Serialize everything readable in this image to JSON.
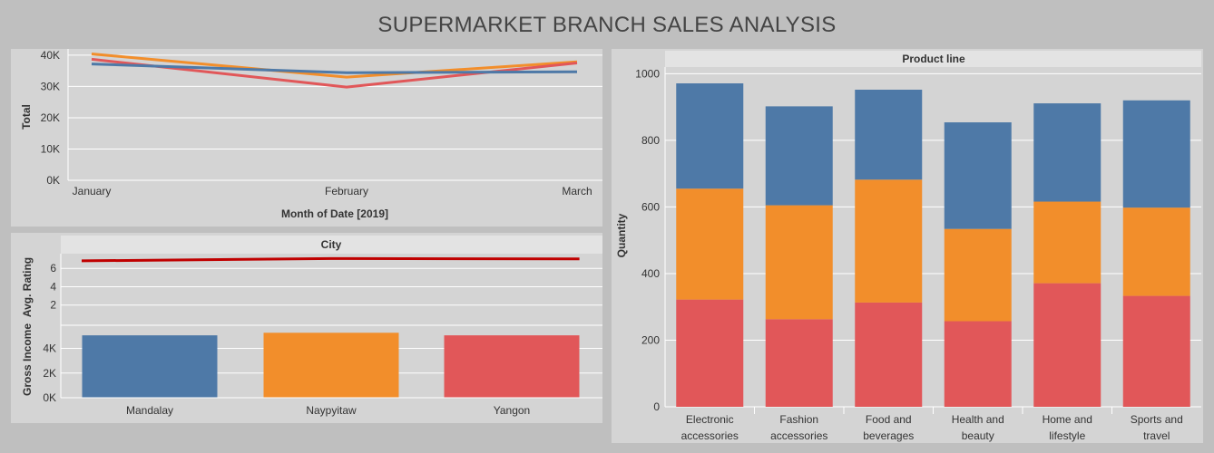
{
  "page_title": "SUPERMARKET BRANCH SALES ANALYSIS",
  "colors": {
    "Mandalay": "#4e79a7",
    "Naypyitaw": "#f28e2b",
    "Yangon": "#e15759",
    "rating_line": "#c00000"
  },
  "chart_data": [
    {
      "id": "monthly_total",
      "type": "line",
      "xlabel": "Month of Date [2019]",
      "ylabel": "Total",
      "x": [
        "January",
        "February",
        "March"
      ],
      "ylim": [
        0,
        42000
      ],
      "yticks": [
        "0K",
        "10K",
        "20K",
        "30K",
        "40K"
      ],
      "ytick_values": [
        0,
        10000,
        20000,
        30000,
        40000
      ],
      "series": [
        {
          "color": "#f28e2b",
          "values": [
            40400,
            33000,
            37900
          ]
        },
        {
          "color": "#e15759",
          "values": [
            38700,
            29800,
            37500
          ]
        },
        {
          "color": "#4e79a7",
          "values": [
            37200,
            34400,
            34700
          ]
        }
      ],
      "grid": true
    },
    {
      "id": "city_rating",
      "type": "line",
      "header": "City",
      "ylabel": "Avg. Rating",
      "categories": [
        "Mandalay",
        "Naypyitaw",
        "Yangon"
      ],
      "values": [
        6.82,
        7.07,
        7.03
      ],
      "ylim": [
        0,
        7.6
      ],
      "yticks": [
        "2",
        "4",
        "6"
      ],
      "ytick_values": [
        2,
        4,
        6
      ],
      "grid": true
    },
    {
      "id": "city_gross_income",
      "type": "bar",
      "ylabel": "Gross Income",
      "categories": [
        "Mandalay",
        "Naypyitaw",
        "Yangon"
      ],
      "values": [
        5057,
        5265,
        5057
      ],
      "ylim": [
        0,
        5800
      ],
      "yticks": [
        "0K",
        "2K",
        "4K"
      ],
      "ytick_values": [
        0,
        2000,
        4000
      ],
      "grid": true
    },
    {
      "id": "product_line_quantity",
      "type": "bar",
      "stacked": true,
      "header": "Product line",
      "ylabel": "Quantity",
      "categories": [
        "Electronic accessories",
        "Fashion accessories",
        "Food and beverages",
        "Health and beauty",
        "Home and lifestyle",
        "Sports and travel"
      ],
      "category_lines": [
        [
          "Electronic",
          "accessories"
        ],
        [
          "Fashion",
          "accessories"
        ],
        [
          "Food and",
          "beverages"
        ],
        [
          "Health and",
          "beauty"
        ],
        [
          "Home and",
          "lifestyle"
        ],
        [
          "Sports and",
          "travel"
        ]
      ],
      "series": [
        {
          "color": "#e15759",
          "values": [
            322,
            263,
            313,
            257,
            371,
            333
          ]
        },
        {
          "color": "#f28e2b",
          "values": [
            333,
            342,
            369,
            277,
            245,
            265
          ]
        },
        {
          "color": "#4e79a7",
          "values": [
            316,
            297,
            270,
            320,
            295,
            322
          ]
        }
      ],
      "ylim": [
        0,
        1020
      ],
      "yticks": [
        "0",
        "200",
        "400",
        "600",
        "800",
        "1000"
      ],
      "ytick_values": [
        0,
        200,
        400,
        600,
        800,
        1000
      ],
      "grid": true
    }
  ]
}
